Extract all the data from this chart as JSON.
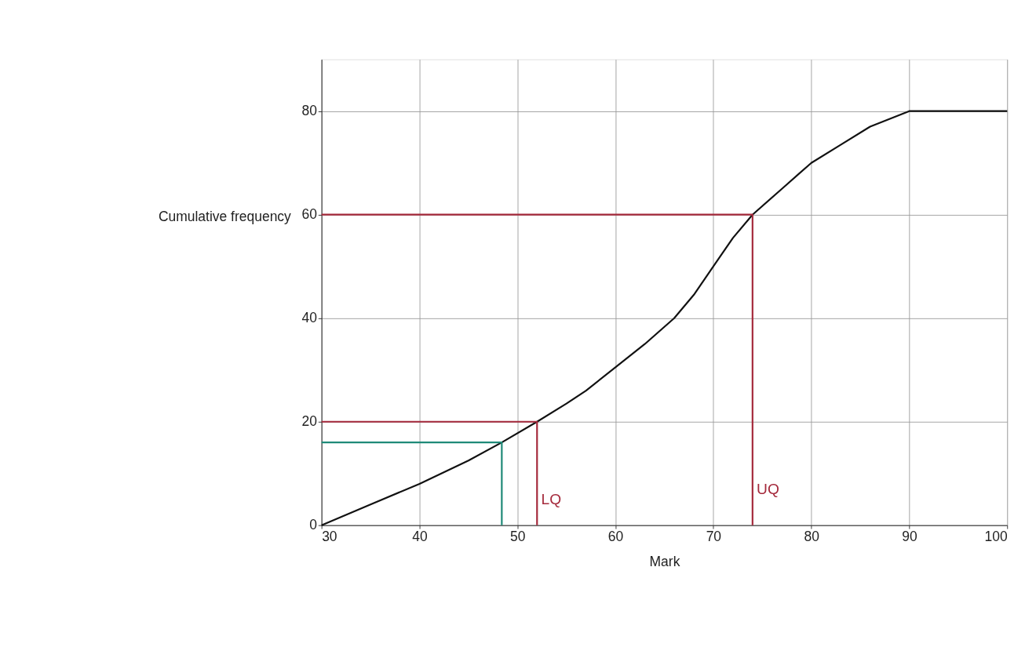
{
  "chart_data": {
    "type": "line",
    "xlabel": "Mark",
    "ylabel": "Cumulative frequency",
    "series": [
      {
        "color": "#111111",
        "x": [
          30,
          35,
          40,
          45,
          48.4,
          52,
          55,
          57,
          60,
          63,
          66,
          68,
          70,
          72,
          74,
          77,
          80,
          83,
          86,
          90,
          100
        ],
        "values": [
          0,
          4,
          8,
          12.5,
          16,
          20,
          23.5,
          26,
          30.5,
          35,
          40,
          44.5,
          50,
          55.5,
          60,
          65,
          70,
          73.5,
          77,
          80,
          80
        ]
      },
      {
        "color": "#a52a3c",
        "x": [
          30,
          74,
          74
        ],
        "values": [
          60,
          60,
          0
        ]
      },
      {
        "color": "#a52a3c",
        "x": [
          30,
          52,
          52
        ],
        "values": [
          20,
          20,
          0
        ]
      },
      {
        "color": "#1f8a78",
        "x": [
          30,
          48.4,
          48.4
        ],
        "values": [
          16,
          16,
          0
        ]
      }
    ],
    "annotations": [
      {
        "text": "LQ",
        "x": 52,
        "y": 5
      },
      {
        "text": "UQ",
        "x": 74,
        "y": 7
      }
    ],
    "xlim": [
      30,
      100
    ],
    "ylim": [
      0,
      90
    ],
    "xticks": [
      30,
      40,
      50,
      60,
      70,
      80,
      90,
      100
    ],
    "yticks": [
      0,
      20,
      40,
      60,
      80
    ],
    "grid": true,
    "marker": "none",
    "line_style": "solid"
  }
}
